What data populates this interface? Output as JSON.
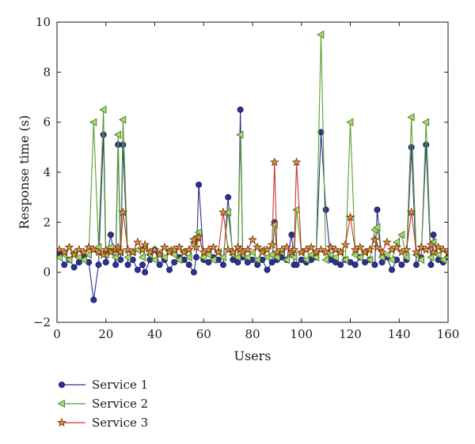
{
  "chart_data": {
    "type": "line",
    "xlabel": "Users",
    "ylabel": "Response time (s)",
    "xlim": [
      0,
      160
    ],
    "ylim": [
      -2,
      10
    ],
    "xticks": [
      0,
      20,
      40,
      60,
      80,
      100,
      120,
      140,
      160
    ],
    "yticks": [
      -2,
      0,
      2,
      4,
      6,
      8,
      10
    ],
    "grid": false,
    "legend_position": "bottom-left, below plot",
    "series": [
      {
        "name": "Service 1",
        "color": "#2b2f8f",
        "fill": "#2e3192",
        "marker": "circle",
        "x": [
          1,
          3,
          5,
          7,
          9,
          11,
          13,
          15,
          17,
          19,
          20,
          22,
          24,
          25,
          26,
          27,
          29,
          31,
          33,
          35,
          36,
          38,
          40,
          42,
          44,
          46,
          48,
          50,
          52,
          54,
          56,
          57,
          58,
          60,
          62,
          64,
          66,
          68,
          70,
          72,
          74,
          75,
          76,
          78,
          80,
          82,
          84,
          86,
          88,
          89,
          90,
          92,
          94,
          96,
          97,
          98,
          100,
          102,
          104,
          106,
          108,
          110,
          112,
          114,
          116,
          118,
          120,
          122,
          124,
          126,
          128,
          130,
          131,
          133,
          135,
          137,
          139,
          141,
          143,
          145,
          147,
          149,
          151,
          153,
          154,
          156,
          158,
          160
        ],
        "y": [
          0.7,
          0.3,
          0.5,
          0.2,
          0.4,
          0.6,
          0.4,
          -1.1,
          0.3,
          5.5,
          0.4,
          1.5,
          0.3,
          5.1,
          0.5,
          5.1,
          0.3,
          0.5,
          0.1,
          0.3,
          0.0,
          0.5,
          0.9,
          0.3,
          0.5,
          0.1,
          0.4,
          0.6,
          0.5,
          0.3,
          0.0,
          0.6,
          3.5,
          0.5,
          0.4,
          0.6,
          0.5,
          0.3,
          3.0,
          0.5,
          0.4,
          6.5,
          0.6,
          0.4,
          0.5,
          0.3,
          0.5,
          0.1,
          0.4,
          2.0,
          0.5,
          0.6,
          0.5,
          1.5,
          0.3,
          0.3,
          0.5,
          0.4,
          0.5,
          0.6,
          5.6,
          2.5,
          0.5,
          0.4,
          0.3,
          0.5,
          0.4,
          0.3,
          0.6,
          0.4,
          0.5,
          0.3,
          2.5,
          0.4,
          0.6,
          0.1,
          0.5,
          0.3,
          0.5,
          5.0,
          0.3,
          0.6,
          5.1,
          0.3,
          1.5,
          0.5,
          0.4,
          0.6
        ]
      },
      {
        "name": "Service 2",
        "color": "#5a9e2f",
        "fill": "#a8d86e",
        "marker": "triangle-left",
        "x": [
          1,
          3,
          5,
          7,
          9,
          11,
          13,
          15,
          17,
          19,
          20,
          22,
          24,
          25,
          26,
          27,
          29,
          31,
          33,
          35,
          36,
          38,
          40,
          42,
          44,
          46,
          48,
          50,
          52,
          54,
          56,
          57,
          58,
          60,
          62,
          64,
          66,
          68,
          70,
          72,
          74,
          75,
          76,
          78,
          80,
          82,
          84,
          86,
          88,
          89,
          90,
          92,
          94,
          96,
          97,
          98,
          100,
          102,
          104,
          106,
          108,
          110,
          112,
          114,
          116,
          118,
          120,
          122,
          124,
          126,
          128,
          130,
          131,
          133,
          135,
          137,
          139,
          141,
          143,
          145,
          147,
          149,
          151,
          153,
          154,
          156,
          158,
          160
        ],
        "y": [
          0.6,
          0.7,
          0.5,
          0.8,
          0.6,
          0.5,
          0.7,
          6.0,
          1.0,
          6.5,
          0.7,
          1.0,
          0.6,
          5.5,
          0.8,
          6.1,
          0.6,
          0.8,
          0.9,
          0.6,
          1.0,
          0.7,
          0.5,
          0.8,
          0.6,
          0.9,
          0.7,
          0.5,
          0.8,
          0.6,
          1.2,
          1.4,
          1.6,
          0.6,
          0.7,
          0.5,
          0.8,
          0.6,
          2.4,
          0.7,
          0.6,
          5.5,
          0.7,
          0.6,
          0.8,
          0.5,
          0.9,
          0.6,
          0.7,
          1.9,
          0.6,
          0.8,
          0.5,
          0.7,
          0.6,
          2.5,
          0.8,
          0.5,
          0.7,
          0.6,
          9.5,
          0.5,
          0.7,
          0.6,
          0.8,
          0.5,
          6.0,
          0.7,
          0.6,
          0.8,
          0.5,
          1.7,
          1.8,
          0.6,
          0.7,
          0.5,
          1.2,
          1.5,
          0.6,
          6.2,
          0.7,
          0.5,
          6.0,
          0.6,
          1.2,
          0.7,
          0.5,
          0.6
        ]
      },
      {
        "name": "Service 3",
        "color": "#c8372d",
        "fill": "#c9a227",
        "marker": "star",
        "x": [
          1,
          3,
          5,
          7,
          9,
          11,
          13,
          15,
          17,
          19,
          20,
          22,
          24,
          25,
          26,
          27,
          29,
          31,
          33,
          35,
          36,
          38,
          40,
          42,
          44,
          46,
          48,
          50,
          52,
          54,
          56,
          57,
          58,
          60,
          62,
          64,
          66,
          68,
          70,
          72,
          74,
          75,
          76,
          78,
          80,
          82,
          84,
          86,
          88,
          89,
          90,
          92,
          94,
          96,
          97,
          98,
          100,
          102,
          104,
          106,
          108,
          110,
          112,
          114,
          116,
          118,
          120,
          122,
          124,
          126,
          128,
          130,
          131,
          133,
          135,
          137,
          139,
          141,
          143,
          145,
          147,
          149,
          151,
          153,
          154,
          156,
          158,
          160
        ],
        "y": [
          0.9,
          0.8,
          1.0,
          0.7,
          0.9,
          0.8,
          1.0,
          0.9,
          0.8,
          0.7,
          0.9,
          0.8,
          0.9,
          1.0,
          0.8,
          2.4,
          0.9,
          0.8,
          1.2,
          0.9,
          1.1,
          0.8,
          0.9,
          0.7,
          1.0,
          0.8,
          0.9,
          1.0,
          0.8,
          0.9,
          1.3,
          1.0,
          1.4,
          0.8,
          0.9,
          1.0,
          0.8,
          2.4,
          0.9,
          0.8,
          1.0,
          0.9,
          0.8,
          0.9,
          1.3,
          1.0,
          0.8,
          0.9,
          1.1,
          4.4,
          0.8,
          0.9,
          1.0,
          0.8,
          0.9,
          4.4,
          0.8,
          0.9,
          1.0,
          0.8,
          0.9,
          0.8,
          1.0,
          0.9,
          0.8,
          1.1,
          2.2,
          0.9,
          1.0,
          0.8,
          0.9,
          1.3,
          1.0,
          0.8,
          1.2,
          0.9,
          1.0,
          0.8,
          0.9,
          2.4,
          0.8,
          1.0,
          0.9,
          1.1,
          0.8,
          1.0,
          0.9,
          0.8
        ]
      }
    ]
  }
}
